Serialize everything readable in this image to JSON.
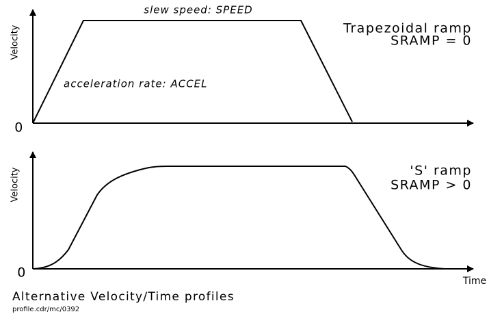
{
  "top_panel": {
    "y_axis_label": "Velocity",
    "origin_label": "0",
    "slew_label": "slew speed: SPEED",
    "accel_label": "acceleration rate: ACCEL",
    "ramp_title": "Trapezoidal ramp",
    "ramp_setting": "SRAMP = 0"
  },
  "bottom_panel": {
    "y_axis_label": "Velocity",
    "origin_label": "0",
    "ramp_title": "'S' ramp",
    "ramp_setting": "SRAMP > 0",
    "x_axis_label": "Time"
  },
  "footer": {
    "caption": "Alternative Velocity/Time profiles",
    "file_ref": "profile.cdr/mc/0392"
  }
}
